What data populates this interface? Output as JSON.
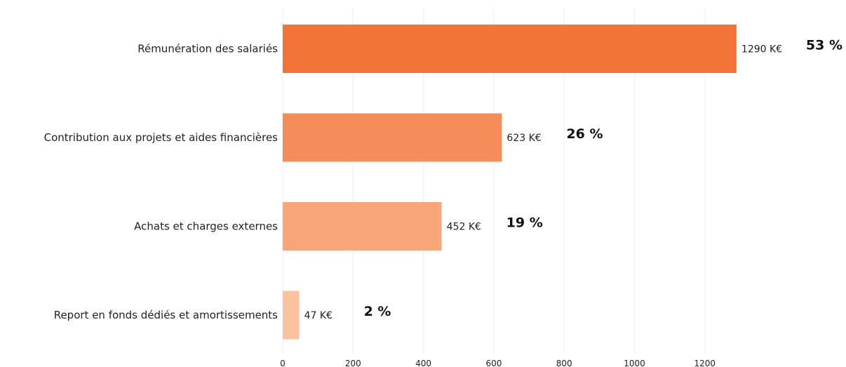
{
  "chart_data": {
    "type": "bar",
    "orientation": "horizontal",
    "categories": [
      "Rémunération des salariés",
      "Contribution aux projets et aides financières",
      "Achats et charges externes",
      "Report en fonds dédiés et amortissements"
    ],
    "values": [
      1290,
      623,
      452,
      47
    ],
    "value_labels": [
      "1290 K€",
      "623 K€",
      "452 K€",
      "47 K€"
    ],
    "percent_labels": [
      "53 %",
      "26 %",
      "19 %",
      "2 %"
    ],
    "colors": [
      "#f27438",
      "#f58d5b",
      "#f8a77c",
      "#fbc2a1"
    ],
    "x_ticks": [
      0,
      200,
      400,
      600,
      800,
      1000,
      1200
    ],
    "xlim": [
      0,
      1380
    ],
    "grid": "vertical",
    "title": "",
    "xlabel": "",
    "ylabel": ""
  }
}
